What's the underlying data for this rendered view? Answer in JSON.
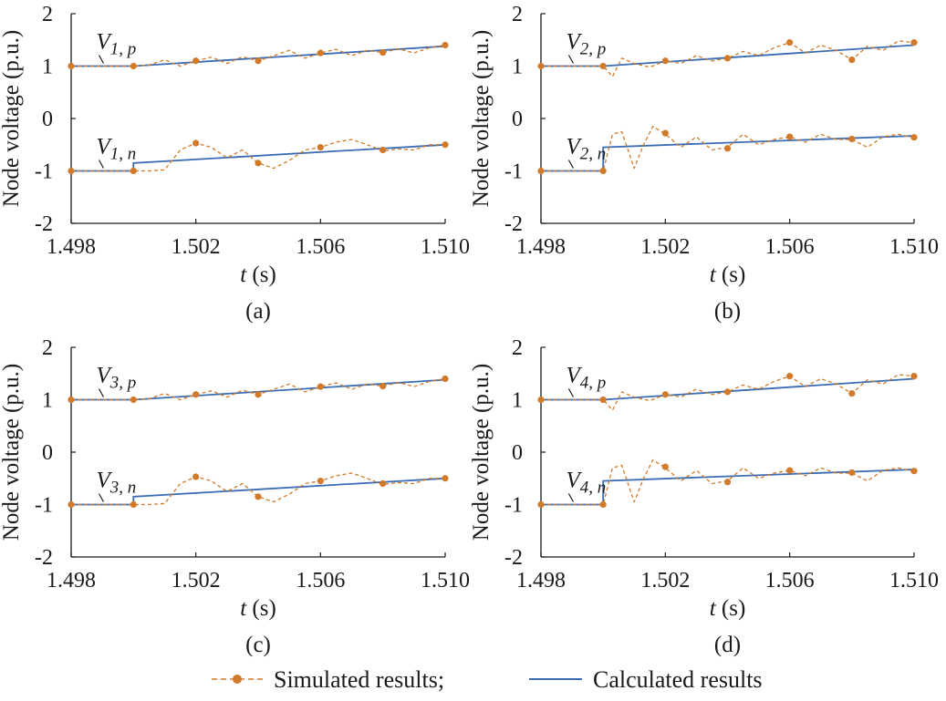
{
  "colors": {
    "simulated": "#d07a2a",
    "calculated": "#3a6cb3",
    "axis": "#1a1a1a"
  },
  "legend": {
    "simulated_label": "Simulated results;",
    "calculated_label": "Calculated results"
  },
  "chart_data": [
    {
      "type": "line",
      "panel_label": "(a)",
      "xlabel_var": "t",
      "xlabel_unit": " (s)",
      "ylabel": "Node voltage (p.u.)",
      "xlim": [
        1.498,
        1.51
      ],
      "ylim": [
        -2,
        2
      ],
      "xticks": [
        "1.498",
        "1.502",
        "1.506",
        "1.510"
      ],
      "yticks": [
        "2",
        "1",
        "0",
        "-1",
        "-2"
      ],
      "annotations": [
        {
          "base": "V",
          "sub": "1, p",
          "x": 1.4986,
          "y": 1.0
        },
        {
          "base": "V",
          "sub": "1, n",
          "x": 1.4986,
          "y": -1.0
        }
      ],
      "series": [
        {
          "series_type": "calculated",
          "x": [
            1.498,
            1.5,
            1.51
          ],
          "y": [
            1.0,
            1.0,
            1.38
          ]
        },
        {
          "series_type": "calculated",
          "x": [
            1.498,
            1.5,
            1.5,
            1.51
          ],
          "y": [
            -1.0,
            -1.0,
            -0.85,
            -0.5
          ]
        },
        {
          "series_type": "simulated",
          "x": [
            1.498,
            1.5,
            1.5005,
            1.501,
            1.5015,
            1.502,
            1.5025,
            1.503,
            1.5035,
            1.504,
            1.5045,
            1.505,
            1.5055,
            1.506,
            1.5065,
            1.507,
            1.5075,
            1.508,
            1.5085,
            1.509,
            1.5095,
            1.51
          ],
          "y": [
            1.0,
            1.0,
            1.02,
            1.12,
            1.0,
            1.1,
            1.17,
            1.05,
            1.18,
            1.1,
            1.2,
            1.3,
            1.15,
            1.25,
            1.32,
            1.2,
            1.3,
            1.26,
            1.33,
            1.25,
            1.35,
            1.4
          ],
          "markers_x": [
            1.498,
            1.5,
            1.502,
            1.504,
            1.506,
            1.508,
            1.51
          ],
          "markers_y": [
            1.0,
            1.0,
            1.1,
            1.1,
            1.25,
            1.26,
            1.4
          ]
        },
        {
          "series_type": "simulated",
          "x": [
            1.498,
            1.5,
            1.5005,
            1.501,
            1.5015,
            1.502,
            1.5025,
            1.503,
            1.5035,
            1.504,
            1.5045,
            1.505,
            1.5055,
            1.506,
            1.5065,
            1.507,
            1.5075,
            1.508,
            1.5085,
            1.509,
            1.5095,
            1.51
          ],
          "y": [
            -1.0,
            -1.0,
            -1.0,
            -0.98,
            -0.6,
            -0.47,
            -0.55,
            -0.75,
            -0.6,
            -0.85,
            -0.95,
            -0.8,
            -0.6,
            -0.55,
            -0.45,
            -0.4,
            -0.5,
            -0.62,
            -0.58,
            -0.6,
            -0.5,
            -0.5
          ],
          "markers_x": [
            1.498,
            1.5,
            1.502,
            1.504,
            1.506,
            1.508,
            1.51
          ],
          "markers_y": [
            -1.0,
            -1.0,
            -0.47,
            -0.85,
            -0.55,
            -0.6,
            -0.5
          ]
        }
      ]
    },
    {
      "type": "line",
      "panel_label": "(b)",
      "xlabel_var": "t",
      "xlabel_unit": " (s)",
      "ylabel": "Node voltage (p.u.)",
      "xlim": [
        1.498,
        1.51
      ],
      "ylim": [
        -2,
        2
      ],
      "xticks": [
        "1.498",
        "1.502",
        "1.506",
        "1.510"
      ],
      "yticks": [
        "2",
        "1",
        "0",
        "-1",
        "-2"
      ],
      "annotations": [
        {
          "base": "V",
          "sub": "2, p",
          "x": 1.4986,
          "y": 1.0
        },
        {
          "base": "V",
          "sub": "2, n",
          "x": 1.4986,
          "y": -1.0
        }
      ],
      "series": [
        {
          "series_type": "calculated",
          "x": [
            1.498,
            1.5,
            1.51
          ],
          "y": [
            1.0,
            1.0,
            1.4
          ]
        },
        {
          "series_type": "calculated",
          "x": [
            1.498,
            1.5,
            1.5,
            1.51
          ],
          "y": [
            -1.0,
            -1.0,
            -0.55,
            -0.33
          ]
        },
        {
          "series_type": "simulated",
          "x": [
            1.498,
            1.5,
            1.5003,
            1.5006,
            1.501,
            1.5015,
            1.502,
            1.5025,
            1.503,
            1.5035,
            1.504,
            1.5045,
            1.505,
            1.5055,
            1.506,
            1.5065,
            1.507,
            1.5075,
            1.508,
            1.5085,
            1.509,
            1.5095,
            1.51
          ],
          "y": [
            1.0,
            1.0,
            0.8,
            1.15,
            1.05,
            0.98,
            1.1,
            1.05,
            1.2,
            1.1,
            1.15,
            1.28,
            1.2,
            1.35,
            1.45,
            1.25,
            1.4,
            1.3,
            1.12,
            1.38,
            1.3,
            1.48,
            1.45
          ],
          "markers_x": [
            1.498,
            1.5,
            1.502,
            1.504,
            1.506,
            1.508,
            1.51
          ],
          "markers_y": [
            1.0,
            1.0,
            1.1,
            1.15,
            1.45,
            1.12,
            1.45
          ]
        },
        {
          "series_type": "simulated",
          "x": [
            1.498,
            1.5,
            1.5003,
            1.5006,
            1.501,
            1.5013,
            1.5016,
            1.502,
            1.5025,
            1.503,
            1.5035,
            1.504,
            1.5045,
            1.505,
            1.5055,
            1.506,
            1.5065,
            1.507,
            1.5075,
            1.508,
            1.5085,
            1.509,
            1.5095,
            1.51
          ],
          "y": [
            -1.0,
            -1.0,
            -0.3,
            -0.25,
            -0.95,
            -0.5,
            -0.15,
            -0.3,
            -0.55,
            -0.35,
            -0.6,
            -0.55,
            -0.3,
            -0.5,
            -0.4,
            -0.35,
            -0.45,
            -0.3,
            -0.4,
            -0.4,
            -0.55,
            -0.35,
            -0.3,
            -0.37
          ],
          "markers_x": [
            1.498,
            1.5,
            1.502,
            1.504,
            1.506,
            1.508,
            1.51
          ],
          "markers_y": [
            -1.0,
            -1.0,
            -0.28,
            -0.57,
            -0.35,
            -0.39,
            -0.36
          ]
        }
      ]
    },
    {
      "type": "line",
      "panel_label": "(c)",
      "xlabel_var": "t",
      "xlabel_unit": " (s)",
      "ylabel": "Node voltage (p.u.)",
      "xlim": [
        1.498,
        1.51
      ],
      "ylim": [
        -2,
        2
      ],
      "xticks": [
        "1.498",
        "1.502",
        "1.506",
        "1.510"
      ],
      "yticks": [
        "2",
        "1",
        "0",
        "-1",
        "-2"
      ],
      "annotations": [
        {
          "base": "V",
          "sub": "3, p",
          "x": 1.4986,
          "y": 1.0
        },
        {
          "base": "V",
          "sub": "3, n",
          "x": 1.4986,
          "y": -1.0
        }
      ],
      "series": [
        {
          "series_type": "calculated",
          "x": [
            1.498,
            1.5,
            1.51
          ],
          "y": [
            1.0,
            1.0,
            1.38
          ]
        },
        {
          "series_type": "calculated",
          "x": [
            1.498,
            1.5,
            1.5,
            1.51
          ],
          "y": [
            -1.0,
            -1.0,
            -0.85,
            -0.5
          ]
        },
        {
          "series_type": "simulated",
          "x": [
            1.498,
            1.5,
            1.5005,
            1.501,
            1.5015,
            1.502,
            1.5025,
            1.503,
            1.5035,
            1.504,
            1.5045,
            1.505,
            1.5055,
            1.506,
            1.5065,
            1.507,
            1.5075,
            1.508,
            1.5085,
            1.509,
            1.5095,
            1.51
          ],
          "y": [
            1.0,
            1.0,
            1.02,
            1.12,
            1.0,
            1.1,
            1.17,
            1.05,
            1.18,
            1.1,
            1.2,
            1.3,
            1.15,
            1.25,
            1.32,
            1.2,
            1.3,
            1.26,
            1.33,
            1.25,
            1.35,
            1.4
          ],
          "markers_x": [
            1.498,
            1.5,
            1.502,
            1.504,
            1.506,
            1.508,
            1.51
          ],
          "markers_y": [
            1.0,
            1.0,
            1.1,
            1.1,
            1.25,
            1.26,
            1.4
          ]
        },
        {
          "series_type": "simulated",
          "x": [
            1.498,
            1.5,
            1.5005,
            1.501,
            1.5015,
            1.502,
            1.5025,
            1.503,
            1.5035,
            1.504,
            1.5045,
            1.505,
            1.5055,
            1.506,
            1.5065,
            1.507,
            1.5075,
            1.508,
            1.5085,
            1.509,
            1.5095,
            1.51
          ],
          "y": [
            -1.0,
            -1.0,
            -1.0,
            -0.98,
            -0.6,
            -0.47,
            -0.55,
            -0.75,
            -0.6,
            -0.85,
            -0.95,
            -0.8,
            -0.6,
            -0.55,
            -0.45,
            -0.4,
            -0.5,
            -0.62,
            -0.58,
            -0.6,
            -0.5,
            -0.5
          ],
          "markers_x": [
            1.498,
            1.5,
            1.502,
            1.504,
            1.506,
            1.508,
            1.51
          ],
          "markers_y": [
            -1.0,
            -1.0,
            -0.47,
            -0.85,
            -0.55,
            -0.6,
            -0.5
          ]
        }
      ]
    },
    {
      "type": "line",
      "panel_label": "(d)",
      "xlabel_var": "t",
      "xlabel_unit": " (s)",
      "ylabel": "Node voltage (p.u.)",
      "xlim": [
        1.498,
        1.51
      ],
      "ylim": [
        -2,
        2
      ],
      "xticks": [
        "1.498",
        "1.502",
        "1.506",
        "1.510"
      ],
      "yticks": [
        "2",
        "1",
        "0",
        "-1",
        "-2"
      ],
      "annotations": [
        {
          "base": "V",
          "sub": "4, p",
          "x": 1.4986,
          "y": 1.0
        },
        {
          "base": "V",
          "sub": "4, n",
          "x": 1.4986,
          "y": -1.0
        }
      ],
      "series": [
        {
          "series_type": "calculated",
          "x": [
            1.498,
            1.5,
            1.51
          ],
          "y": [
            1.0,
            1.0,
            1.4
          ]
        },
        {
          "series_type": "calculated",
          "x": [
            1.498,
            1.5,
            1.5,
            1.51
          ],
          "y": [
            -1.0,
            -1.0,
            -0.55,
            -0.33
          ]
        },
        {
          "series_type": "simulated",
          "x": [
            1.498,
            1.5,
            1.5003,
            1.5006,
            1.501,
            1.5015,
            1.502,
            1.5025,
            1.503,
            1.5035,
            1.504,
            1.5045,
            1.505,
            1.5055,
            1.506,
            1.5065,
            1.507,
            1.5075,
            1.508,
            1.5085,
            1.509,
            1.5095,
            1.51
          ],
          "y": [
            1.0,
            1.0,
            0.8,
            1.15,
            1.05,
            0.98,
            1.1,
            1.05,
            1.2,
            1.1,
            1.15,
            1.28,
            1.2,
            1.35,
            1.45,
            1.25,
            1.4,
            1.3,
            1.12,
            1.38,
            1.3,
            1.48,
            1.45
          ],
          "markers_x": [
            1.498,
            1.5,
            1.502,
            1.504,
            1.506,
            1.508,
            1.51
          ],
          "markers_y": [
            1.0,
            1.0,
            1.1,
            1.15,
            1.45,
            1.12,
            1.45
          ]
        },
        {
          "series_type": "simulated",
          "x": [
            1.498,
            1.5,
            1.5003,
            1.5006,
            1.501,
            1.5013,
            1.5016,
            1.502,
            1.5025,
            1.503,
            1.5035,
            1.504,
            1.5045,
            1.505,
            1.5055,
            1.506,
            1.5065,
            1.507,
            1.5075,
            1.508,
            1.5085,
            1.509,
            1.5095,
            1.51
          ],
          "y": [
            -1.0,
            -1.0,
            -0.3,
            -0.25,
            -0.95,
            -0.5,
            -0.15,
            -0.3,
            -0.55,
            -0.35,
            -0.6,
            -0.55,
            -0.3,
            -0.5,
            -0.4,
            -0.35,
            -0.45,
            -0.3,
            -0.4,
            -0.4,
            -0.55,
            -0.35,
            -0.3,
            -0.37
          ],
          "markers_x": [
            1.498,
            1.5,
            1.502,
            1.504,
            1.506,
            1.508,
            1.51
          ],
          "markers_y": [
            -1.0,
            -1.0,
            -0.28,
            -0.57,
            -0.35,
            -0.39,
            -0.36
          ]
        }
      ]
    }
  ]
}
